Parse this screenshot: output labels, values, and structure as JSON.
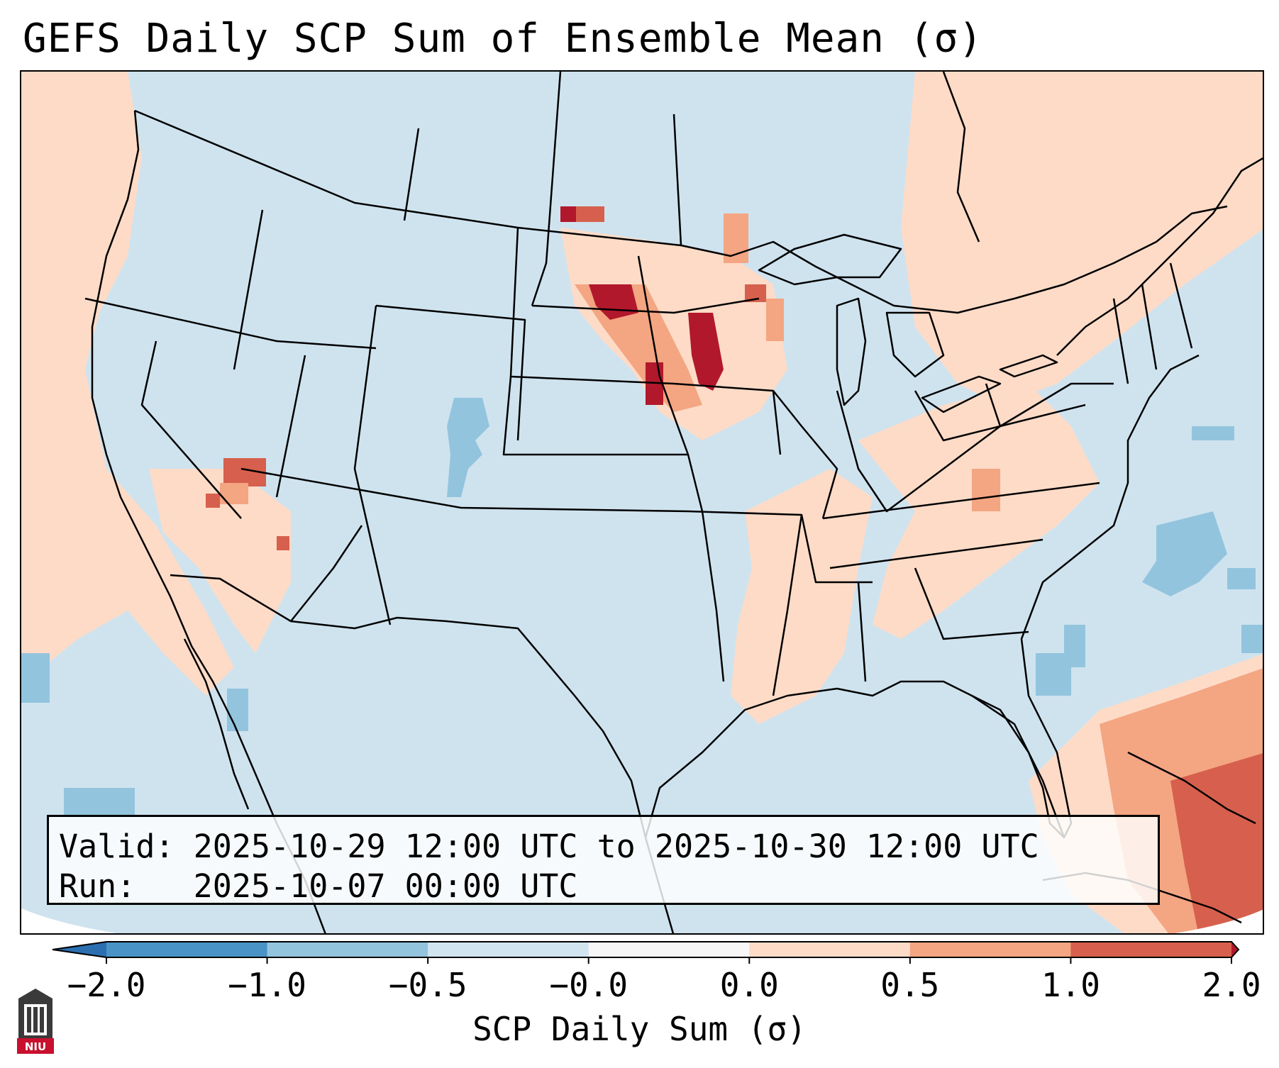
{
  "title": "GEFS Daily SCP Sum of Ensemble Mean (σ)",
  "info": {
    "valid_line": "Valid: 2025-10-29 12:00 UTC to 2025-10-30 12:00 UTC",
    "run_line": "Run:   2025-10-07 00:00 UTC"
  },
  "colorbar": {
    "label": "SCP Daily Sum (σ)",
    "ticks": [
      "−2.0",
      "−1.0",
      "−0.5",
      "−0.0",
      "0.0",
      "0.5",
      "1.0",
      "2.0"
    ],
    "bins": [
      {
        "range": "< -2.0",
        "color": "#2b6fb0"
      },
      {
        "range": "-2.0 to -1.0",
        "color": "#4a93c6"
      },
      {
        "range": "-1.0 to -0.5",
        "color": "#93c4de"
      },
      {
        "range": "-0.5 to -0.0",
        "color": "#d1e5f0"
      },
      {
        "range": "-0.0 to 0.0",
        "color": "#f7f7f7"
      },
      {
        "range": "0.0 to 0.5",
        "color": "#fddbc7"
      },
      {
        "range": "0.5 to 1.0",
        "color": "#f4a582"
      },
      {
        "range": "1.0 to 2.0",
        "color": "#d6604d"
      },
      {
        "range": "> 2.0",
        "color": "#b2182b"
      }
    ]
  },
  "map": {
    "region": "CONUS",
    "anomaly_areas": [
      {
        "name": "west-coast",
        "level": "0.0 to 0.5"
      },
      {
        "name": "southwest-nevada-arizona",
        "level": "0.5 to 1.0"
      },
      {
        "name": "northern-plains-minnesota",
        "level": "> 2.0"
      },
      {
        "name": "lower-mississippi",
        "level": "0.0 to 0.5"
      },
      {
        "name": "appalachians",
        "level": "0.0 to 0.5"
      },
      {
        "name": "northeast-canada",
        "level": "0.0 to 0.5"
      },
      {
        "name": "bahamas-caribbean",
        "level": "1.0 to 2.0"
      },
      {
        "name": "colorado",
        "level": "-1.0 to -0.5"
      },
      {
        "name": "atlantic-offshore",
        "level": "-1.0 to -0.5"
      }
    ]
  },
  "logo": {
    "text": "NIU"
  }
}
